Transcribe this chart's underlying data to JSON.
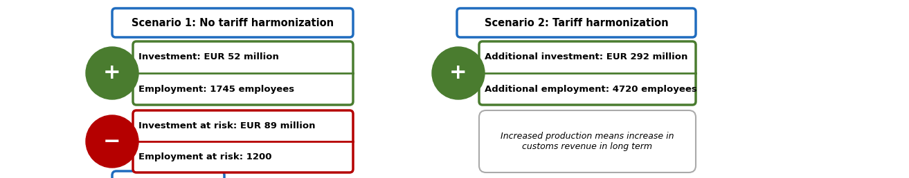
{
  "bg_color": "#ffffff",
  "scenario1": {
    "title": "Scenario 1: No tariff harmonization",
    "title_box_color": "#1f6cbf",
    "plus_color": "#4a7c2f",
    "plus_items": [
      "Investment: EUR 52 million",
      "Employment: 1745 employees"
    ],
    "plus_box_color": "#4a7c2f",
    "minus_color": "#b50000",
    "minus_items": [
      "Investment at risk: EUR 89 million",
      "Employment at risk: 1200"
    ],
    "minus_box_color": "#b50000"
  },
  "scenario2": {
    "title": "Scenario 2: Tariff harmonization",
    "title_box_color": "#1f6cbf",
    "plus_color": "#4a7c2f",
    "plus_items": [
      "Additional investment: EUR 292 million",
      "Additional employment: 4720 employees"
    ],
    "plus_box_color": "#4a7c2f",
    "note_text": "Increased production means increase in\ncustoms revenue in long term",
    "note_box_color": "#aaaaaa"
  },
  "font_size_title": 10.5,
  "font_size_item": 9.5
}
